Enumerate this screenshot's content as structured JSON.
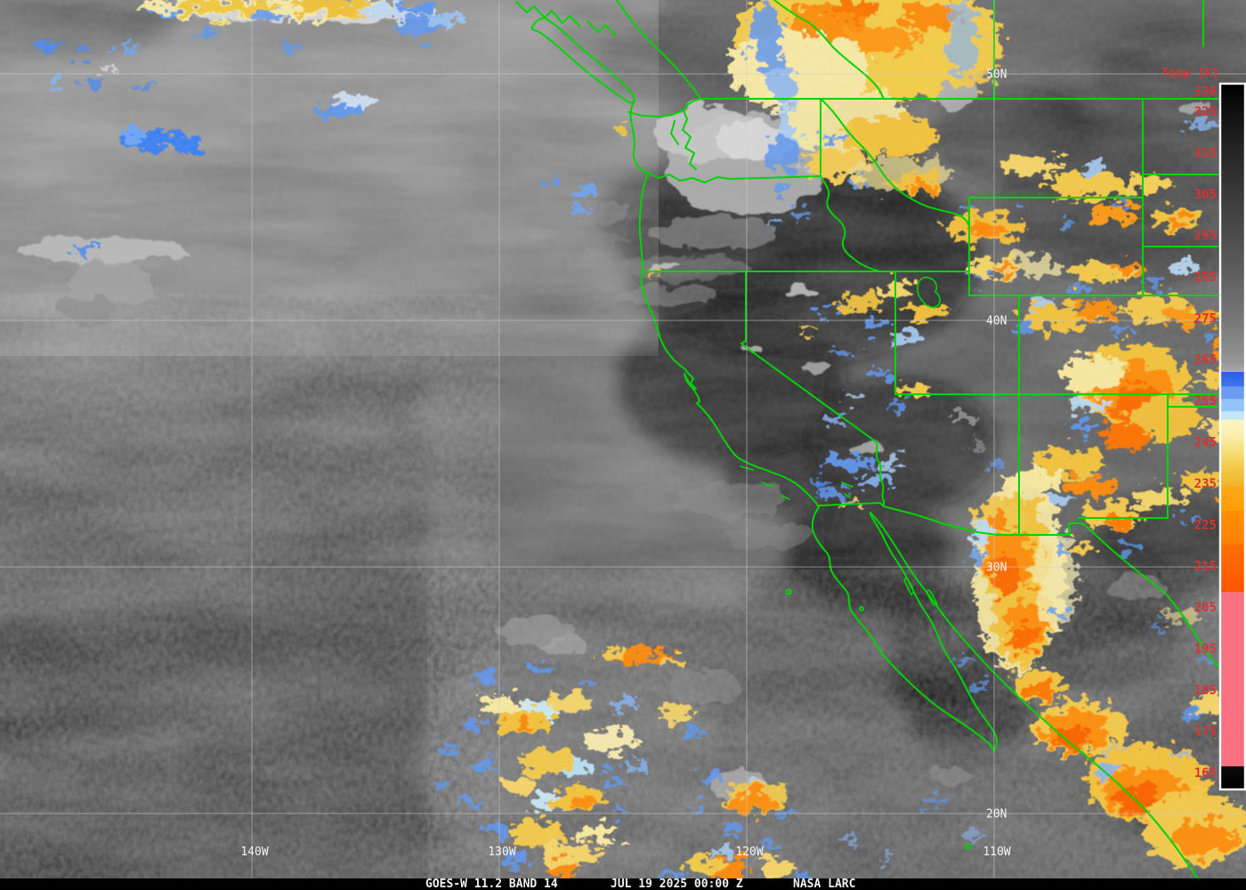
{
  "product_bar": {
    "instrument": "GOES-W 11.2 BAND 14",
    "datetime": "JUL 19 2025 00:00 Z",
    "credit": "NASA LARC"
  },
  "colorbar": {
    "title": "Temp [K]",
    "unit": "K",
    "domain": [
      330,
      160
    ],
    "ticks": [
      330,
      325,
      315,
      305,
      295,
      285,
      275,
      265,
      255,
      245,
      235,
      225,
      215,
      205,
      195,
      185,
      175,
      165
    ],
    "label_color": "#d63434",
    "frame_color": "#ffffff",
    "stops": [
      [
        330,
        "#000000"
      ],
      [
        318,
        "#1c1c1c"
      ],
      [
        300,
        "#404040"
      ],
      [
        285,
        "#5d5d5d"
      ],
      [
        272,
        "#7a7a7a"
      ],
      [
        263,
        "#969696"
      ],
      [
        260.6,
        "#a9a9a9"
      ],
      [
        260.5,
        "#2e5ee6"
      ],
      [
        257.1,
        "#3f75ec"
      ],
      [
        257.0,
        "#6c9cf2"
      ],
      [
        254.1,
        "#6c9cf2"
      ],
      [
        254.0,
        "#93c3f7"
      ],
      [
        251.1,
        "#93c3f7"
      ],
      [
        251.0,
        "#c3e7fa"
      ],
      [
        249.1,
        "#c3e7fa"
      ],
      [
        249.0,
        "#fdf5c5"
      ],
      [
        245,
        "#fbeda9"
      ],
      [
        241,
        "#f7dc74"
      ],
      [
        237,
        "#f2c644"
      ],
      [
        233.1,
        "#efb52e"
      ],
      [
        233.0,
        "#ffa819"
      ],
      [
        227.1,
        "#ff9d06"
      ],
      [
        227.0,
        "#ff8f00"
      ],
      [
        219.1,
        "#ff8000"
      ],
      [
        219.0,
        "#ff7100"
      ],
      [
        212,
        "#ff6000"
      ],
      [
        207.6,
        "#ff5404"
      ],
      [
        207.5,
        "#fa7280"
      ],
      [
        204,
        "#f97280"
      ],
      [
        168,
        "#f97180"
      ],
      [
        165.6,
        "#f97180"
      ],
      [
        165.5,
        "#0a0a0a"
      ],
      [
        160,
        "#000000"
      ]
    ]
  },
  "graticule": {
    "line_color": "#cccccc",
    "label_color": "#f5f5f5",
    "latitudes": [
      {
        "label": "50N",
        "deg": 50
      },
      {
        "label": "40N",
        "deg": 40
      },
      {
        "label": "30N",
        "deg": 30
      },
      {
        "label": "20N",
        "deg": 20
      }
    ],
    "longitudes": [
      {
        "label": "140W",
        "deg": 140
      },
      {
        "label": "130W",
        "deg": 130
      },
      {
        "label": "120W",
        "deg": 120
      },
      {
        "label": "110W",
        "deg": 110
      }
    ]
  },
  "map": {
    "border_color": "#00d400"
  }
}
